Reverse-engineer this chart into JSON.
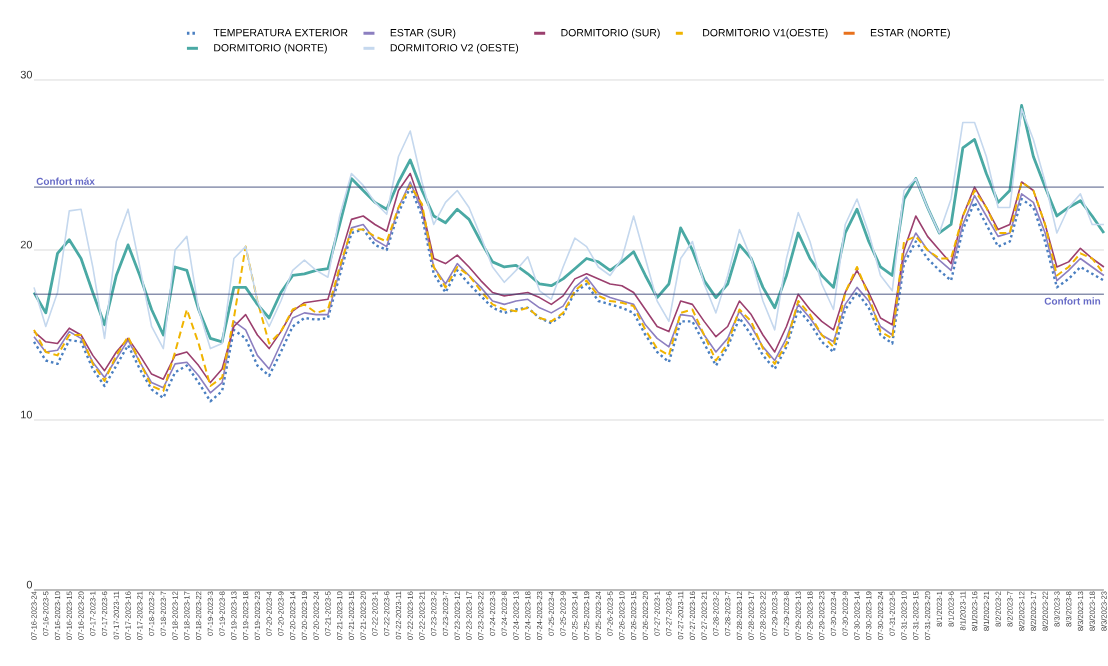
{
  "chart_data": {
    "type": "line",
    "categories": [
      "07-16-2023-24",
      "07-16-2023-5",
      "07-16-2023-10",
      "07-16-2023-15",
      "07-16-2023-20",
      "07-17-2023-1",
      "07-17-2023-6",
      "07-17-2023-11",
      "07-17-2023-16",
      "07-17-2023-21",
      "07-18-2023-2",
      "07-18-2023-7",
      "07-18-2023-12",
      "07-18-2023-17",
      "07-18-2023-22",
      "07-19-2023-3",
      "07-19-2023-8",
      "07-19-2023-13",
      "07-19-2023-18",
      "07-19-2023-23",
      "07-20-2023-4",
      "07-20-2023-9",
      "07-20-2023-14",
      "07-20-2023-19",
      "07-20-2023-24",
      "07-21-2023-5",
      "07-21-2023-10",
      "07-21-2023-15",
      "07-21-2023-20",
      "07-22-2023-1",
      "07-22-2023-6",
      "07-22-2023-11",
      "07-22-2023-16",
      "07-22-2023-21",
      "07-23-2023-2",
      "07-23-2023-7",
      "07-23-2023-12",
      "07-23-2023-17",
      "07-23-2023-22",
      "07-24-2023-3",
      "07-24-2023-8",
      "07-24-2023-13",
      "07-24-2023-18",
      "07-24-2023-23",
      "07-25-2023-4",
      "07-25-2023-9",
      "07-25-2023-14",
      "07-25-2023-19",
      "07-25-2023-24",
      "07-26-2023-5",
      "07-26-2023-10",
      "07-26-2023-15",
      "07-26-2023-20",
      "07-27-2023-1",
      "07-27-2023-6",
      "07-27-2023-11",
      "07-27-2023-16",
      "07-27-2023-21",
      "07-28-2023-2",
      "07-28-2023-7",
      "07-28-2023-12",
      "07-28-2023-17",
      "07-28-2023-22",
      "07-29-2023-3",
      "07-29-2023-8",
      "07-29-2023-13",
      "07-29-2023-18",
      "07-29-2023-23",
      "07-30-2023-4",
      "07-30-2023-9",
      "07-30-2023-14",
      "07-30-2023-19",
      "07-30-2023-24",
      "07-31-2023-5",
      "07-31-2023-10",
      "07-31-2023-15",
      "07-31-2023-20",
      "8/1/2023-1",
      "8/1/2023-6",
      "8/1/2023-11",
      "8/1/2023-16",
      "8/1/2023-21",
      "8/2/2023-2",
      "8/2/2023-7",
      "8/2/2023-12",
      "8/2/2023-17",
      "8/2/2023-22",
      "8/3/2023-3",
      "8/3/2023-8",
      "8/3/2023-13",
      "8/3/2023-18",
      "8/3/2023-23"
    ],
    "series": [
      {
        "name": "TEMPERATURA EXTERIOR",
        "color": "#4a7fc1",
        "line_style": "dotted",
        "values": [
          14.6,
          13.5,
          13.3,
          14.7,
          14.6,
          13.0,
          12.0,
          13.2,
          14.4,
          13.0,
          11.8,
          11.3,
          12.8,
          13.2,
          12.2,
          11.1,
          11.7,
          15.3,
          14.8,
          13.2,
          12.6,
          14.0,
          15.5,
          16.0,
          15.9,
          16.0,
          18.5,
          21.0,
          21.2,
          20.3,
          20.0,
          22.2,
          23.7,
          22.0,
          18.6,
          17.5,
          18.8,
          18.0,
          17.3,
          16.6,
          16.3,
          16.5,
          16.6,
          16.0,
          15.7,
          16.2,
          17.5,
          18.0,
          17.0,
          16.8,
          16.6,
          16.3,
          15.0,
          14.0,
          13.4,
          15.8,
          15.8,
          14.5,
          13.2,
          14.3,
          16.0,
          15.0,
          13.8,
          13.0,
          14.3,
          16.5,
          15.7,
          14.6,
          14.0,
          16.5,
          17.5,
          16.6,
          15.0,
          14.5,
          19.2,
          20.5,
          19.5,
          18.8,
          18.2,
          21.2,
          22.8,
          21.5,
          20.2,
          20.5,
          23.0,
          22.5,
          20.5,
          17.8,
          18.3,
          19.0,
          18.6,
          18.2
        ]
      },
      {
        "name": "ESTAR (SUR)",
        "color": "#8c7fc0",
        "line_style": "solid",
        "values": [
          14.9,
          14.0,
          14.1,
          15.2,
          14.8,
          13.4,
          12.5,
          13.6,
          14.7,
          13.4,
          12.2,
          11.9,
          13.3,
          13.4,
          12.6,
          11.6,
          12.2,
          15.8,
          15.3,
          13.8,
          13.0,
          14.5,
          16.0,
          16.3,
          16.2,
          16.2,
          18.8,
          21.3,
          21.5,
          20.6,
          20.2,
          22.5,
          24.0,
          22.3,
          19.0,
          18.0,
          19.2,
          18.5,
          17.8,
          17.0,
          16.8,
          17.0,
          17.1,
          16.6,
          16.3,
          16.7,
          17.8,
          18.4,
          17.5,
          17.2,
          17.0,
          16.8,
          15.6,
          14.8,
          14.3,
          16.2,
          16.1,
          15.0,
          14.0,
          14.8,
          16.4,
          15.5,
          14.3,
          13.5,
          14.8,
          16.8,
          16.0,
          15.0,
          14.6,
          16.8,
          17.8,
          17.0,
          15.5,
          15.0,
          19.5,
          21.0,
          20.0,
          19.4,
          18.8,
          21.5,
          23.2,
          22.0,
          20.8,
          21.0,
          23.3,
          22.8,
          21.0,
          18.2,
          18.8,
          19.5,
          19.0,
          18.5
        ]
      },
      {
        "name": "DORMITORIO (SUR)",
        "color": "#9b3f6e",
        "line_style": "solid",
        "values": [
          15.2,
          14.6,
          14.5,
          15.4,
          15.0,
          13.8,
          12.9,
          14.0,
          14.8,
          13.8,
          12.7,
          12.4,
          13.8,
          14.0,
          13.2,
          12.2,
          13.0,
          15.5,
          16.2,
          15.0,
          14.2,
          15.2,
          16.4,
          16.9,
          17.0,
          17.1,
          19.5,
          21.8,
          22.0,
          21.5,
          21.1,
          23.5,
          24.5,
          22.5,
          19.5,
          19.2,
          19.7,
          19.0,
          18.2,
          17.5,
          17.3,
          17.4,
          17.5,
          17.2,
          16.8,
          17.3,
          18.3,
          18.6,
          18.3,
          18.0,
          17.9,
          17.5,
          16.5,
          15.5,
          15.2,
          17.0,
          16.8,
          15.8,
          14.9,
          15.5,
          17.0,
          16.2,
          15.0,
          14.0,
          15.5,
          17.4,
          16.5,
          15.8,
          15.3,
          17.5,
          18.8,
          17.5,
          16.0,
          15.6,
          20.0,
          22.0,
          20.8,
          20.0,
          19.2,
          22.0,
          23.7,
          22.5,
          21.2,
          21.5,
          24.0,
          23.5,
          21.5,
          19.0,
          19.3,
          20.1,
          19.5,
          19.0
        ]
      },
      {
        "name": "DORMITORIO V1(OESTE)",
        "color": "#f0b400",
        "line_style": "dashed",
        "values": [
          15.3,
          14.0,
          13.8,
          15.0,
          15.0,
          13.3,
          12.3,
          13.8,
          14.9,
          13.4,
          12.0,
          11.7,
          14.0,
          16.5,
          14.5,
          12.0,
          12.5,
          16.0,
          20.2,
          17.0,
          14.5,
          15.2,
          16.5,
          16.8,
          16.3,
          16.5,
          19.0,
          21.2,
          21.2,
          20.8,
          20.5,
          22.5,
          23.8,
          22.7,
          19.0,
          17.8,
          19.0,
          18.5,
          17.6,
          16.8,
          16.5,
          16.4,
          16.6,
          16.0,
          15.8,
          16.3,
          17.6,
          18.2,
          17.3,
          17.0,
          16.9,
          16.7,
          15.3,
          14.2,
          13.8,
          16.3,
          16.5,
          15.0,
          13.5,
          14.5,
          16.5,
          15.8,
          14.2,
          13.3,
          14.5,
          17.0,
          16.2,
          15.0,
          14.3,
          17.5,
          19.0,
          17.3,
          15.2,
          14.8,
          20.5,
          20.8,
          20.0,
          19.5,
          19.5,
          22.0,
          23.5,
          22.5,
          21.0,
          21.0,
          24.0,
          23.5,
          21.5,
          18.5,
          19.0,
          19.8,
          19.5,
          18.6
        ]
      },
      {
        "name": "ESTAR (NORTE)",
        "color": "#e8711c",
        "line_style": "solid",
        "values": [
          null,
          null,
          null,
          null,
          null,
          null,
          null,
          null,
          null,
          null,
          null,
          null,
          null,
          null,
          null,
          null,
          null,
          null,
          null,
          null,
          null,
          null,
          null,
          null,
          null,
          null,
          null,
          null,
          null,
          null,
          null,
          null,
          null,
          null,
          null,
          null,
          null,
          null,
          null,
          null,
          null,
          null,
          null,
          null,
          null,
          null,
          null,
          null,
          null,
          null,
          null,
          null,
          null,
          null,
          null,
          null,
          null,
          null,
          null,
          null,
          null,
          null,
          null,
          null,
          null,
          null,
          null,
          null,
          null,
          null,
          null,
          null,
          null,
          null,
          null,
          null,
          null,
          null,
          null,
          null,
          null,
          null,
          null,
          null,
          null,
          null,
          null,
          null,
          null,
          null,
          null,
          null
        ]
      },
      {
        "name": "DORMITORIO (NORTE)",
        "color": "#4aa9a4",
        "line_style": "solid",
        "values": [
          17.5,
          16.3,
          19.8,
          20.6,
          19.5,
          17.5,
          15.6,
          18.5,
          20.3,
          18.5,
          16.5,
          15.0,
          19.0,
          18.8,
          16.5,
          14.8,
          14.6,
          17.8,
          17.8,
          16.8,
          16.0,
          17.5,
          18.5,
          18.6,
          18.8,
          18.9,
          21.5,
          24.2,
          23.5,
          22.8,
          22.4,
          24.0,
          25.3,
          23.5,
          22.0,
          21.6,
          22.4,
          21.8,
          20.5,
          19.3,
          19.0,
          19.1,
          18.6,
          18.0,
          17.9,
          18.3,
          18.9,
          19.5,
          19.3,
          18.8,
          19.3,
          19.9,
          18.5,
          17.2,
          18.0,
          21.3,
          20.0,
          18.2,
          17.2,
          18.0,
          20.3,
          19.5,
          17.8,
          16.6,
          18.5,
          21.0,
          19.5,
          18.5,
          17.8,
          21.0,
          22.4,
          20.5,
          19.0,
          18.5,
          23.0,
          24.2,
          22.5,
          21.0,
          21.5,
          26.0,
          26.5,
          24.5,
          22.8,
          23.5,
          28.5,
          25.5,
          23.7,
          22.0,
          22.5,
          22.9,
          22.0,
          21.0
        ]
      },
      {
        "name": "DORMITORIO V2 (OESTE)",
        "color": "#c5d8ee",
        "line_style": "solid",
        "values": [
          17.8,
          15.5,
          17.5,
          22.3,
          22.4,
          19.0,
          14.8,
          20.5,
          22.4,
          19.0,
          15.5,
          14.2,
          20.0,
          20.8,
          16.5,
          14.2,
          14.5,
          19.5,
          20.2,
          17.0,
          15.5,
          17.0,
          18.8,
          19.4,
          18.8,
          18.4,
          22.0,
          24.5,
          23.8,
          22.8,
          22.1,
          25.5,
          27.0,
          24.0,
          21.5,
          22.8,
          23.5,
          22.5,
          20.8,
          19.0,
          18.1,
          18.8,
          19.6,
          17.6,
          17.1,
          19.0,
          20.7,
          20.2,
          19.0,
          18.5,
          19.5,
          22.0,
          19.5,
          17.0,
          15.8,
          19.5,
          20.5,
          18.0,
          16.3,
          18.5,
          21.2,
          19.5,
          17.0,
          15.3,
          19.5,
          22.2,
          20.5,
          18.0,
          16.5,
          21.5,
          23.0,
          21.0,
          18.5,
          17.6,
          23.5,
          24.2,
          22.5,
          21.0,
          23.0,
          27.5,
          27.5,
          25.5,
          22.5,
          22.5,
          28.3,
          26.5,
          24.0,
          21.0,
          22.5,
          23.3,
          21.5,
          21.5
        ]
      }
    ],
    "ylim": [
      0,
      30
    ],
    "yticks": [
      0,
      10,
      20,
      30
    ],
    "grid": "y",
    "legend": "top",
    "marker": "none",
    "ref_lines": [
      {
        "axis": "y",
        "value": 23.7,
        "label": "Confort máx",
        "color": "#3c4778"
      },
      {
        "axis": "y",
        "value": 17.4,
        "label": "Confort min",
        "color": "#3c4778"
      }
    ]
  }
}
